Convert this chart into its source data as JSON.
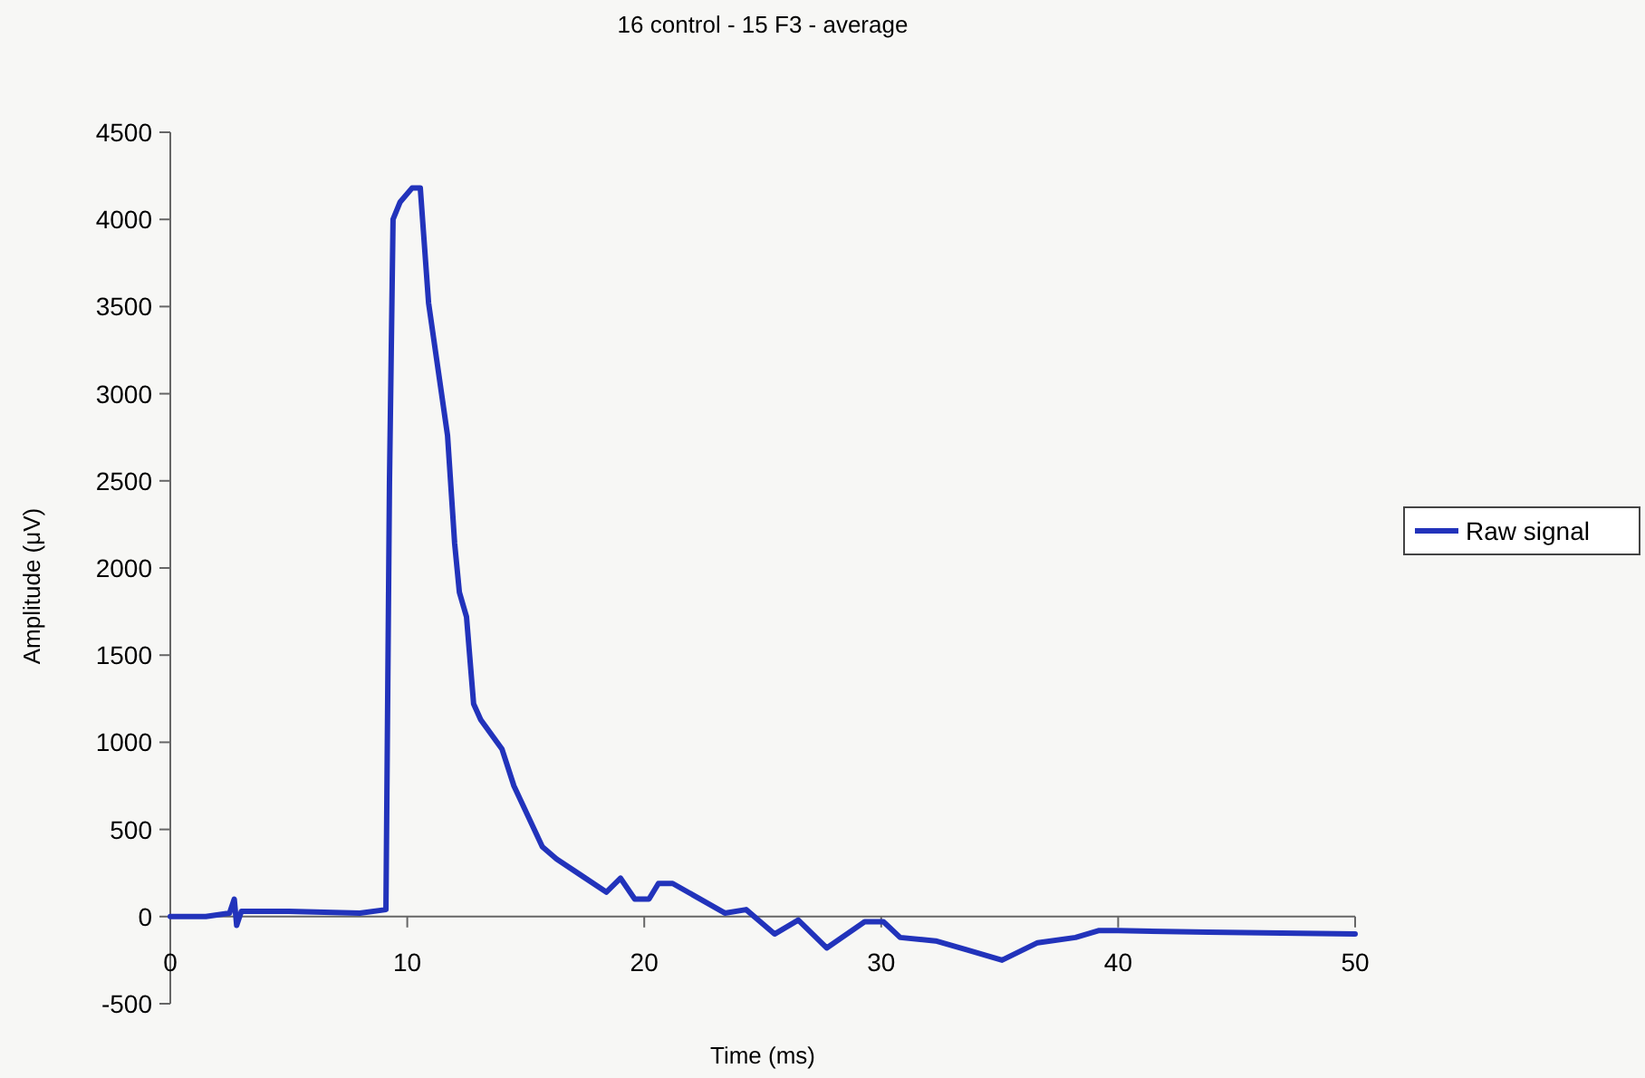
{
  "chart_data": {
    "type": "line",
    "title": "16 control - 15 F3 - average",
    "xlabel": "Time (ms)",
    "ylabel": "Amplitude (μV)",
    "xlim": [
      0,
      50
    ],
    "ylim": [
      -500,
      4500
    ],
    "xticks": [
      0,
      10,
      20,
      30,
      40,
      50
    ],
    "yticks": [
      -500,
      0,
      500,
      1000,
      1500,
      2000,
      2500,
      3000,
      3500,
      4000,
      4500
    ],
    "grid": false,
    "legend": "right",
    "marker": "none",
    "line_style": "solid",
    "series": [
      {
        "name": "Raw signal",
        "color": "#2233bb",
        "x": [
          0,
          1.5,
          2.5,
          2.7,
          2.8,
          3,
          5,
          8,
          9.1,
          9.25,
          9.4,
          9.7,
          10.2,
          10.55,
          10.9,
          11.7,
          12,
          12.2,
          12.5,
          12.8,
          13.1,
          14,
          14.5,
          15.7,
          16.3,
          17.3,
          18.4,
          19,
          19.6,
          20.2,
          20.6,
          21.2,
          23.4,
          24.3,
          25.5,
          26.5,
          27.7,
          29.3,
          30.1,
          30.8,
          32.3,
          33.6,
          35.1,
          36.6,
          38.2,
          39.2,
          40,
          43.8,
          50
        ],
        "values": [
          0,
          0,
          20,
          100,
          -50,
          30,
          30,
          20,
          40,
          2500,
          4000,
          4100,
          4180,
          4180,
          3520,
          2760,
          2140,
          1860,
          1720,
          1220,
          1130,
          960,
          750,
          400,
          330,
          240,
          140,
          220,
          100,
          100,
          190,
          190,
          20,
          40,
          -100,
          -20,
          -180,
          -30,
          -30,
          -120,
          -140,
          -190,
          -250,
          -150,
          -120,
          -80,
          -80,
          -90,
          -100
        ]
      }
    ]
  }
}
